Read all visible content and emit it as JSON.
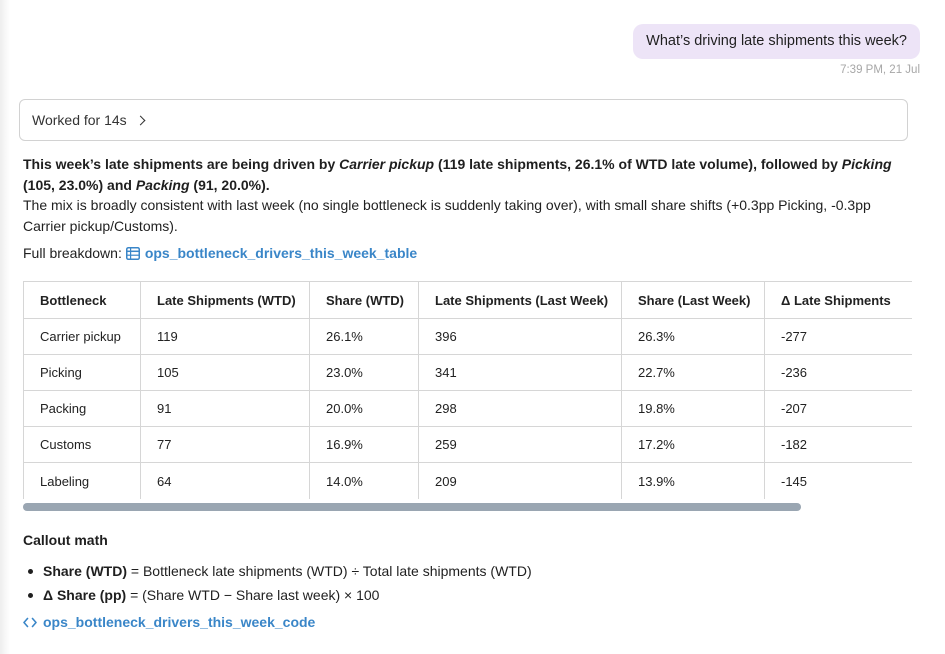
{
  "user_message": {
    "text": "What’s driving late shipments this week?",
    "timestamp": "7:39 PM, 21 Jul"
  },
  "worked": {
    "label": "Worked for 14s",
    "icon": "chevron-right-icon"
  },
  "answer": {
    "s1_prefix": "This week’s late shipments are being driven by ",
    "s1_item1": "Carrier pickup",
    "s1_item1_detail": " (119 late shipments, 26.1% of WTD late volume), followed by ",
    "s1_item2": "Picking",
    "s1_item2_detail": " (105, 23.0%) and ",
    "s1_item3": "Packing",
    "s1_item3_detail": " (91, 20.0%).",
    "s2": "The mix is broadly consistent with last week (no single bottleneck is suddenly taking over), with small share shifts (+0.3pp Picking, -0.3pp Carrier pickup/Customs)."
  },
  "breakdown": {
    "label": "Full breakdown:",
    "link": "ops_bottleneck_drivers_this_week_table",
    "icon": "table-icon"
  },
  "table": {
    "headers": [
      "Bottleneck",
      "Late Shipments (WTD)",
      "Share (WTD)",
      "Late Shipments (Last Week)",
      "Share (Last Week)",
      "Δ Late Shipments"
    ],
    "rows": [
      [
        "Carrier pickup",
        "119",
        "26.1%",
        "396",
        "26.3%",
        "-277"
      ],
      [
        "Picking",
        "105",
        "23.0%",
        "341",
        "22.7%",
        "-236"
      ],
      [
        "Packing",
        "91",
        "20.0%",
        "298",
        "19.8%",
        "-207"
      ],
      [
        "Customs",
        "77",
        "16.9%",
        "259",
        "17.2%",
        "-182"
      ],
      [
        "Labeling",
        "64",
        "14.0%",
        "209",
        "13.9%",
        "-145"
      ]
    ]
  },
  "callout": {
    "title": "Callout math",
    "items": [
      {
        "term": "Share (WTD)",
        "definition": " = Bottleneck late shipments (WTD) ÷ Total late shipments (WTD)"
      },
      {
        "term": "Δ Share (pp)",
        "definition": " = (Share WTD − Share last week) × 100"
      }
    ]
  },
  "code_link": {
    "text": "ops_bottleneck_drivers_this_week_code",
    "icon": "code-icon"
  },
  "colors": {
    "accent": "#3a86c8",
    "user_bubble": "#ede4f7",
    "scrollbar": "#9aa6b2"
  }
}
